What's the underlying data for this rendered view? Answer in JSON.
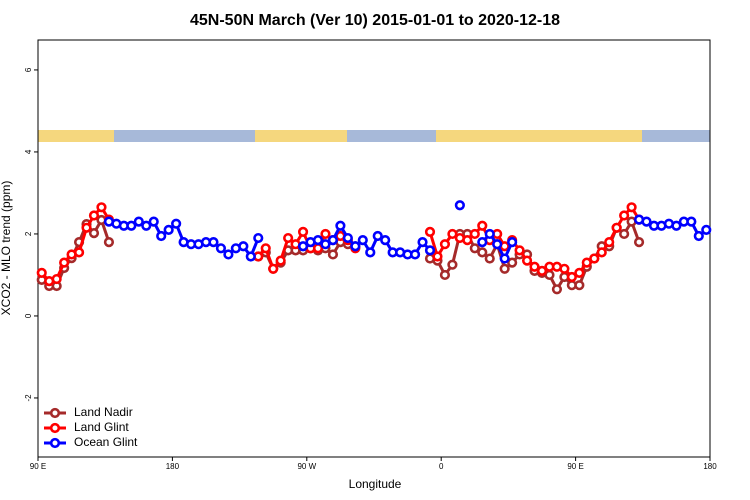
{
  "chart_data": {
    "type": "line",
    "title": "45N-50N March (Ver 10)   2015-01-01 to 2020-12-18",
    "xlabel": "Longitude",
    "ylabel": "XCO2 - MLO trend (ppm)",
    "xlim": [
      90,
      540
    ],
    "ylim": [
      -3.44,
      6.73
    ],
    "xticks": [
      {
        "value": 90,
        "label": "90 E"
      },
      180,
      {
        "value": 270,
        "label": "90 W"
      },
      {
        "value": 360,
        "label": "0"
      },
      {
        "value": 450,
        "label": "90 E"
      },
      {
        "value": 540,
        "label": "180"
      }
    ],
    "yticks": [
      -2,
      0,
      2,
      4,
      6
    ],
    "legend": "bottom-left",
    "series": [
      {
        "name": "Land Nadir",
        "color": "#a52a2a",
        "x": [
          92.5,
          97.5,
          102.5,
          107.5,
          112.5,
          117.5,
          122.5,
          127.5,
          132.5,
          137.5,
          142.5,
          237.5,
          242.5,
          247.5,
          252.5,
          257.5,
          262.5,
          267.5,
          272.5,
          277.5,
          282.5,
          287.5,
          292.5,
          297.5,
          302.5,
          307.5,
          352.5,
          357.5,
          362.5,
          367.5,
          372.5,
          377.5,
          382.5,
          387.5,
          392.5,
          397.5,
          402.5,
          407.5,
          412.5,
          417.5,
          422.5,
          427.5,
          432.5,
          437.5,
          442.5,
          447.5,
          452.5,
          457.5,
          462.5,
          467.5,
          472.5,
          477.5,
          482.5,
          487.5,
          492.5
        ],
        "values": [
          0.88,
          0.73,
          0.73,
          1.17,
          1.41,
          1.8,
          2.24,
          2.02,
          2.34,
          1.8,
          null,
          1.45,
          1.55,
          1.15,
          1.3,
          1.6,
          1.6,
          1.6,
          1.65,
          1.6,
          1.65,
          1.5,
          1.8,
          1.75,
          1.7,
          null,
          1.4,
          1.35,
          1.0,
          1.25,
          2.0,
          2.0,
          1.65,
          1.55,
          1.4,
          1.75,
          1.15,
          1.3,
          1.5,
          1.5,
          1.1,
          1.05,
          1.0,
          0.65,
          0.95,
          0.75,
          0.75,
          1.2,
          1.4,
          1.7,
          1.7,
          2.15,
          2.0,
          2.3,
          1.8
        ]
      },
      {
        "name": "Land Glint",
        "color": "#ff0000",
        "x": [
          92.5,
          97.5,
          102.5,
          107.5,
          112.5,
          117.5,
          122.5,
          127.5,
          132.5,
          137.5,
          142.5,
          237.5,
          242.5,
          247.5,
          252.5,
          257.5,
          262.5,
          267.5,
          272.5,
          277.5,
          282.5,
          287.5,
          292.5,
          297.5,
          302.5,
          307.5,
          352.5,
          357.5,
          362.5,
          367.5,
          372.5,
          377.5,
          382.5,
          387.5,
          392.5,
          397.5,
          402.5,
          407.5,
          412.5,
          417.5,
          422.5,
          427.5,
          432.5,
          437.5,
          442.5,
          447.5,
          452.5,
          457.5,
          462.5,
          467.5,
          472.5,
          477.5,
          482.5,
          487.5,
          492.5
        ],
        "values": [
          1.05,
          0.85,
          0.9,
          1.3,
          1.5,
          1.55,
          2.15,
          2.45,
          2.65,
          2.35,
          null,
          1.45,
          1.65,
          1.15,
          1.35,
          1.9,
          1.75,
          2.05,
          1.65,
          1.65,
          2.0,
          1.85,
          1.95,
          1.85,
          1.65,
          null,
          2.05,
          1.45,
          1.75,
          2.0,
          1.9,
          1.85,
          2.0,
          2.2,
          1.85,
          2.0,
          1.7,
          1.85,
          1.6,
          1.35,
          1.2,
          1.1,
          1.2,
          1.2,
          1.15,
          0.95,
          1.05,
          1.3,
          1.4,
          1.55,
          1.8,
          2.15,
          2.45,
          2.65,
          2.35
        ]
      },
      {
        "name": "Ocean Glint",
        "color": "#0000ff",
        "x": [
          137.5,
          142.5,
          147.5,
          152.5,
          157.5,
          162.5,
          167.5,
          172.5,
          177.5,
          182.5,
          187.5,
          192.5,
          197.5,
          202.5,
          207.5,
          212.5,
          217.5,
          222.5,
          227.5,
          232.5,
          237.5,
          242.5,
          267.5,
          272.5,
          277.5,
          282.5,
          287.5,
          292.5,
          297.5,
          302.5,
          307.5,
          312.5,
          317.5,
          322.5,
          327.5,
          332.5,
          337.5,
          342.5,
          347.5,
          352.5,
          357.5,
          372.5,
          377.5,
          387.5,
          392.5,
          397.5,
          402.5,
          407.5,
          412.5,
          492.5,
          497.5,
          502.5,
          507.5,
          512.5,
          517.5,
          522.5,
          527.5,
          532.5,
          537.5
        ],
        "values": [
          2.3,
          2.25,
          2.2,
          2.2,
          2.3,
          2.2,
          2.3,
          1.95,
          2.1,
          2.25,
          1.8,
          1.75,
          1.75,
          1.8,
          1.8,
          1.65,
          1.5,
          1.65,
          1.7,
          1.45,
          1.9,
          null,
          1.7,
          1.8,
          1.85,
          1.75,
          1.85,
          2.2,
          1.9,
          1.7,
          1.85,
          1.55,
          1.95,
          1.85,
          1.55,
          1.55,
          1.5,
          1.5,
          1.8,
          1.6,
          null,
          2.7,
          null,
          1.8,
          2.0,
          1.75,
          1.4,
          1.8,
          null,
          2.35,
          2.3,
          2.2,
          2.2,
          2.25,
          2.2,
          2.3,
          2.3,
          1.95,
          2.1
        ]
      }
    ]
  }
}
